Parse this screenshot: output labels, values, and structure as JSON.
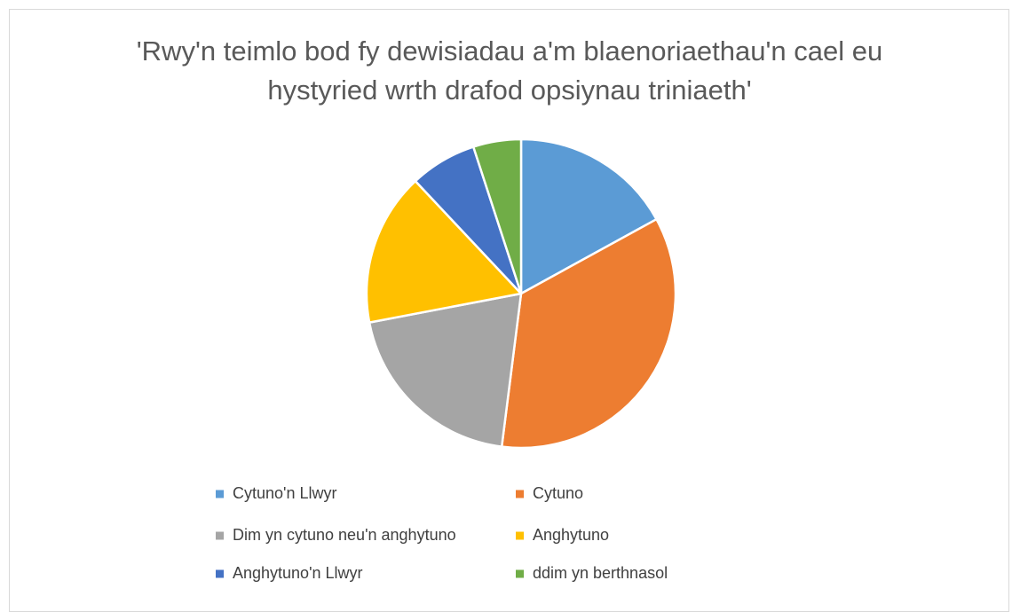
{
  "chart_data": {
    "type": "pie",
    "title": "'Rwy'n teimlo bod fy dewisiadau a'm blaenoriaethau'n cael eu hystyried wrth drafod opsiynau triniaeth'",
    "categories": [
      "Cytuno'n Llwyr",
      "Cytuno",
      "Dim yn cytuno neu'n anghytuno",
      "Anghytuno",
      "Anghytuno'n Llwyr",
      "ddim yn berthnasol"
    ],
    "values": [
      17,
      35,
      20,
      16,
      7,
      5
    ],
    "colors": [
      "#5b9bd5",
      "#ed7d31",
      "#a5a5a5",
      "#ffc000",
      "#4472c4",
      "#70ad47"
    ],
    "legend": "bottom"
  }
}
